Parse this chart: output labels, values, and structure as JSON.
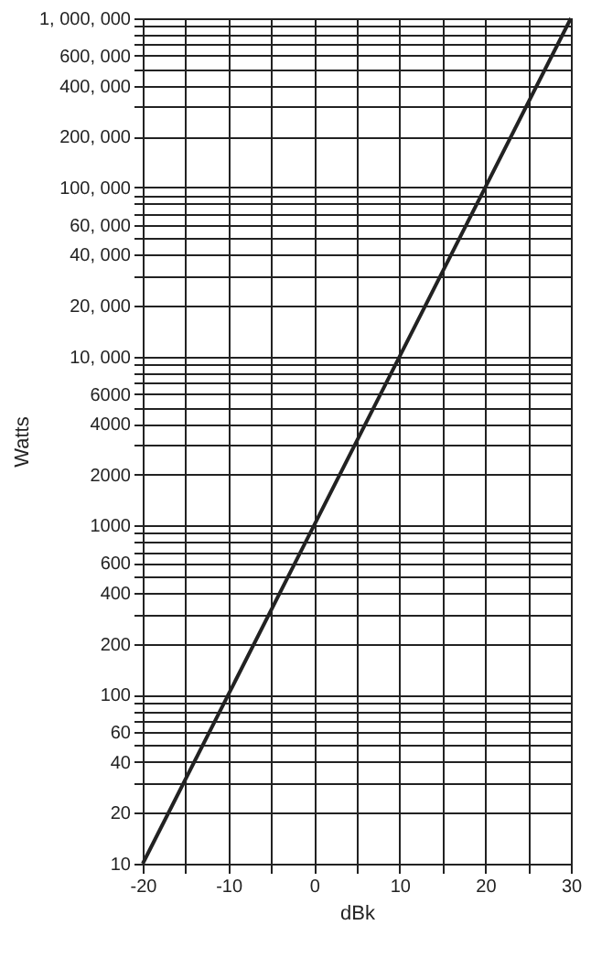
{
  "chart_data": {
    "type": "line",
    "xlabel": "dBk",
    "ylabel": "Watts",
    "log": "y",
    "grid": true,
    "marker": "none",
    "line_style": "solid",
    "x": [
      -20,
      -10,
      0,
      10,
      20,
      30
    ],
    "series": [
      {
        "color": "#222222",
        "values": [
          10,
          100,
          1000,
          10000,
          100000,
          1000000
        ]
      }
    ],
    "xlim": [
      -20,
      30
    ],
    "xticks": [
      -20,
      {
        "value": -15,
        "label": null
      },
      -10,
      {
        "value": -5,
        "label": null
      },
      0,
      {
        "value": 5,
        "label": null
      },
      10,
      {
        "value": 15,
        "label": null
      },
      20,
      {
        "value": 25,
        "label": null
      },
      30
    ],
    "ylim": [
      10,
      1000000
    ],
    "yticks": [
      10,
      20,
      {
        "value": 30,
        "label": null
      },
      40,
      {
        "value": 50,
        "label": null
      },
      60,
      {
        "value": 70,
        "label": null
      },
      {
        "value": 80,
        "label": null
      },
      {
        "value": 90,
        "label": null
      },
      100,
      200,
      {
        "value": 300,
        "label": null
      },
      400,
      {
        "value": 500,
        "label": null
      },
      600,
      {
        "value": 700,
        "label": null
      },
      {
        "value": 800,
        "label": null
      },
      {
        "value": 900,
        "label": null
      },
      1000,
      2000,
      {
        "value": 3000,
        "label": null
      },
      4000,
      {
        "value": 5000,
        "label": null
      },
      6000,
      {
        "value": 7000,
        "label": null
      },
      {
        "value": 8000,
        "label": null
      },
      {
        "value": 9000,
        "label": null
      },
      {
        "value": 10000,
        "label": "10, 000"
      },
      {
        "value": 20000,
        "label": "20, 000"
      },
      {
        "value": 30000,
        "label": null
      },
      {
        "value": 40000,
        "label": "40, 000"
      },
      {
        "value": 50000,
        "label": null
      },
      {
        "value": 60000,
        "label": "60, 000"
      },
      {
        "value": 70000,
        "label": null
      },
      {
        "value": 80000,
        "label": null
      },
      {
        "value": 90000,
        "label": null
      },
      {
        "value": 100000,
        "label": "100, 000"
      },
      {
        "value": 200000,
        "label": "200, 000"
      },
      {
        "value": 300000,
        "label": null
      },
      {
        "value": 400000,
        "label": "400, 000"
      },
      {
        "value": 500000,
        "label": null
      },
      {
        "value": 600000,
        "label": "600, 000"
      },
      {
        "value": 700000,
        "label": null
      },
      {
        "value": 800000,
        "label": null
      },
      {
        "value": 900000,
        "label": null
      },
      {
        "value": 1000000,
        "label": "1, 000, 000"
      }
    ]
  }
}
